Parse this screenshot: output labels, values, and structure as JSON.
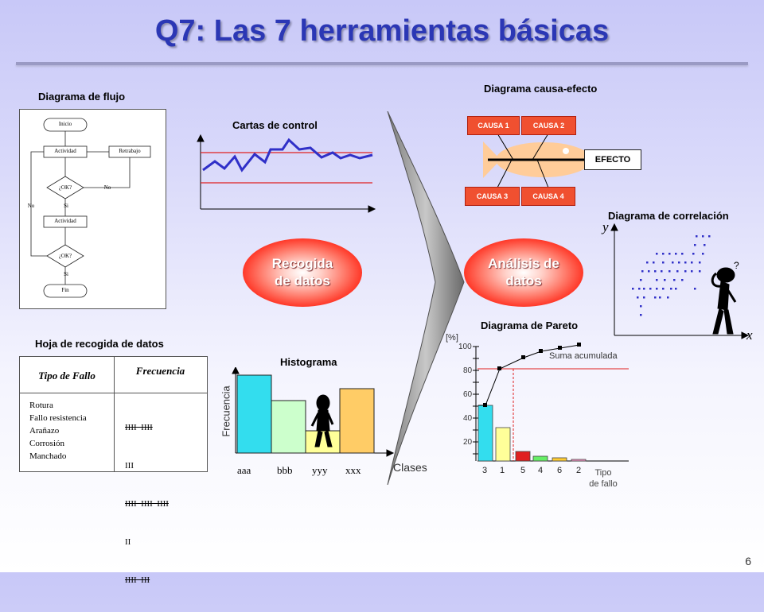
{
  "title": "Q7: Las 7 herramientas básicas",
  "page_number": "6",
  "center": {
    "recogida_line1": "Recogida",
    "recogida_line2": "de datos",
    "analisis_line1": "Análisis de",
    "analisis_line2": "datos"
  },
  "flowchart": {
    "title": "Diagrama de flujo",
    "inicio": "Inicio",
    "actividad": "Actividad",
    "retrabajo": "Retrabajo",
    "ok": "¿OK?",
    "si": "Si",
    "no": "No",
    "fin": "Fin"
  },
  "control_chart": {
    "title": "Cartas de control"
  },
  "cause_effect": {
    "title": "Diagrama causa-efecto",
    "causes": [
      "CAUSA 1",
      "CAUSA 2",
      "CAUSA 3",
      "CAUSA 4"
    ],
    "effect": "EFECTO"
  },
  "correlation": {
    "title": "Diagrama de correlación",
    "y": "y",
    "x": "x",
    "question": "?"
  },
  "check_sheet": {
    "title": "Hoja de recogida de datos",
    "col1": "Tipo de Fallo",
    "col2": "Frecuencia",
    "rows": [
      {
        "tipo": "Rotura",
        "marks": "IIII  IIII",
        "strike": true
      },
      {
        "tipo": "Fallo resistencia",
        "marks": "III",
        "strike": false
      },
      {
        "tipo": "Arañazo",
        "marks": "IIII  IIII  IIII",
        "strike": true
      },
      {
        "tipo": "Corrosión",
        "marks": "II",
        "strike": false
      },
      {
        "tipo": "Manchado",
        "marks": "IIII  III",
        "strike": true
      }
    ]
  },
  "histogram": {
    "title": "Histograma",
    "ylabel": "Frecuencia",
    "xlabel": "Clases",
    "categories": [
      "aaa",
      "bbb",
      "yyy",
      "xxx"
    ]
  },
  "pareto": {
    "title": "Diagrama de Pareto",
    "ylabel": "[%]",
    "yticks": [
      "100",
      "80",
      "60",
      "40",
      "20"
    ],
    "categories": [
      "3",
      "1",
      "5",
      "4",
      "6",
      "2"
    ],
    "xlabel_line1": "Tipo",
    "xlabel_line2": "de fallo",
    "cumulative_label": "Suma acumulada"
  },
  "colors": {
    "title": "#2b37b5",
    "control_line": "#3030c8",
    "limit_line": "#e02020",
    "cause_box": "#f05030",
    "fish": "#ffcc99",
    "hist_bars": [
      "#33ddee",
      "#ccffcc",
      "#ffff99",
      "#ffcc66"
    ],
    "pareto_bars": [
      "#33ddee",
      "#ffff99",
      "#e02020",
      "#66ee66",
      "#ffcc33",
      "#ff99cc"
    ]
  }
}
